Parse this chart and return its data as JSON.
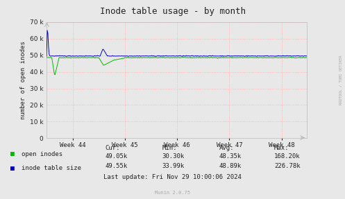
{
  "title": "Inode table usage - by month",
  "ylabel": "number of open inodes",
  "background_color": "#e8e8e8",
  "plot_bg_color": "#e8e8e8",
  "grid_color": "#ffaaaa",
  "ylim": [
    0,
    70000
  ],
  "yticks": [
    0,
    10000,
    20000,
    30000,
    40000,
    50000,
    60000,
    70000
  ],
  "xtick_labels": [
    "Week 44",
    "Week 45",
    "Week 46",
    "Week 47",
    "Week 48"
  ],
  "open_inodes_color": "#00bb00",
  "inode_table_color": "#0000cc",
  "legend_items": [
    "open inodes",
    "inode table size"
  ],
  "stats_header": [
    "Cur:",
    "Min:",
    "Avg:",
    "Max:"
  ],
  "stats_open": [
    "49.05k",
    "30.30k",
    "48.35k",
    "168.20k"
  ],
  "stats_table": [
    "49.55k",
    "33.99k",
    "48.89k",
    "226.78k"
  ],
  "last_update": "Last update: Fri Nov 29 10:00:06 2024",
  "munin_version": "Munin 2.0.75",
  "right_label": "RRDTOOL / TOBI OETIKER",
  "title_color": "#222222",
  "text_color": "#222222",
  "light_text_color": "#aaaaaa"
}
